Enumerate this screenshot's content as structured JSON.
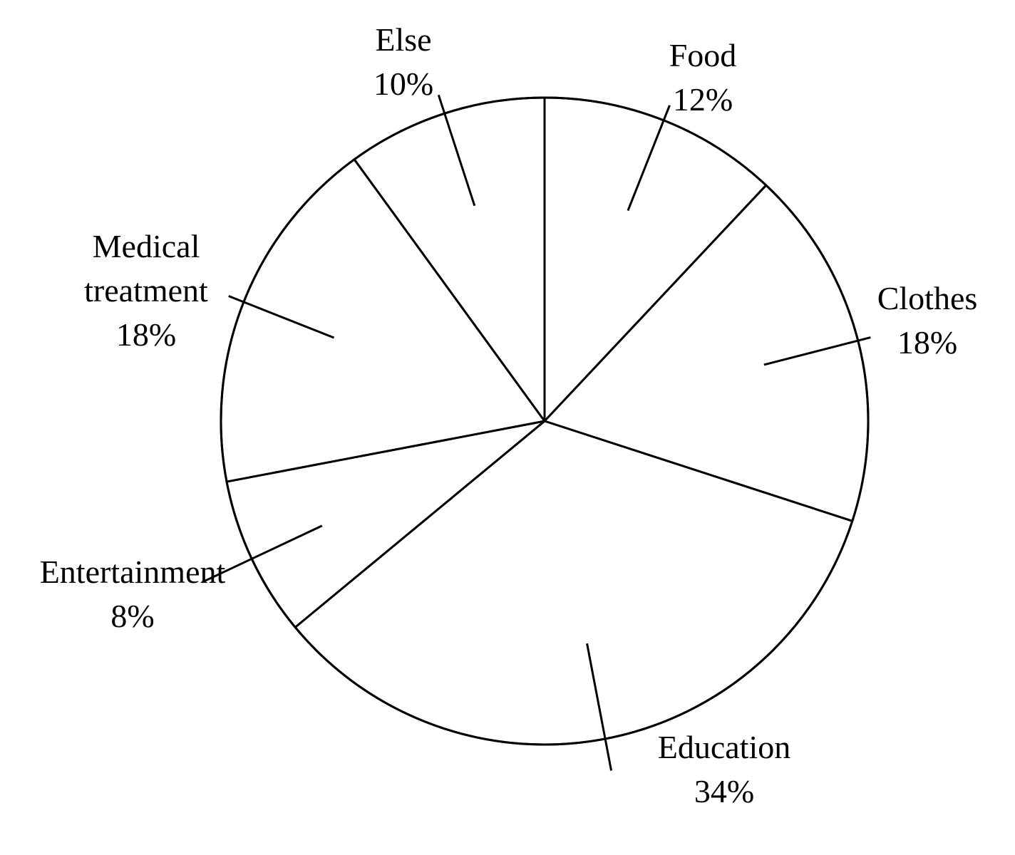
{
  "chart_data": {
    "type": "pie",
    "start_angle_deg": 0,
    "direction": "clockwise",
    "colors": {
      "fill": "#ffffff",
      "stroke": "#000000"
    },
    "slices": [
      {
        "label": "Food",
        "value": 12,
        "value_label": "12%"
      },
      {
        "label": "Clothes",
        "value": 18,
        "value_label": "18%"
      },
      {
        "label": "Education",
        "value": 34,
        "value_label": "34%"
      },
      {
        "label": "Entertainment",
        "value": 8,
        "value_label": "8%"
      },
      {
        "label": "Medical treatment",
        "label_lines": [
          "Medical",
          "treatment"
        ],
        "value": 18,
        "value_label": "18%"
      },
      {
        "label": "Else",
        "value": 10,
        "value_label": "10%"
      }
    ]
  }
}
